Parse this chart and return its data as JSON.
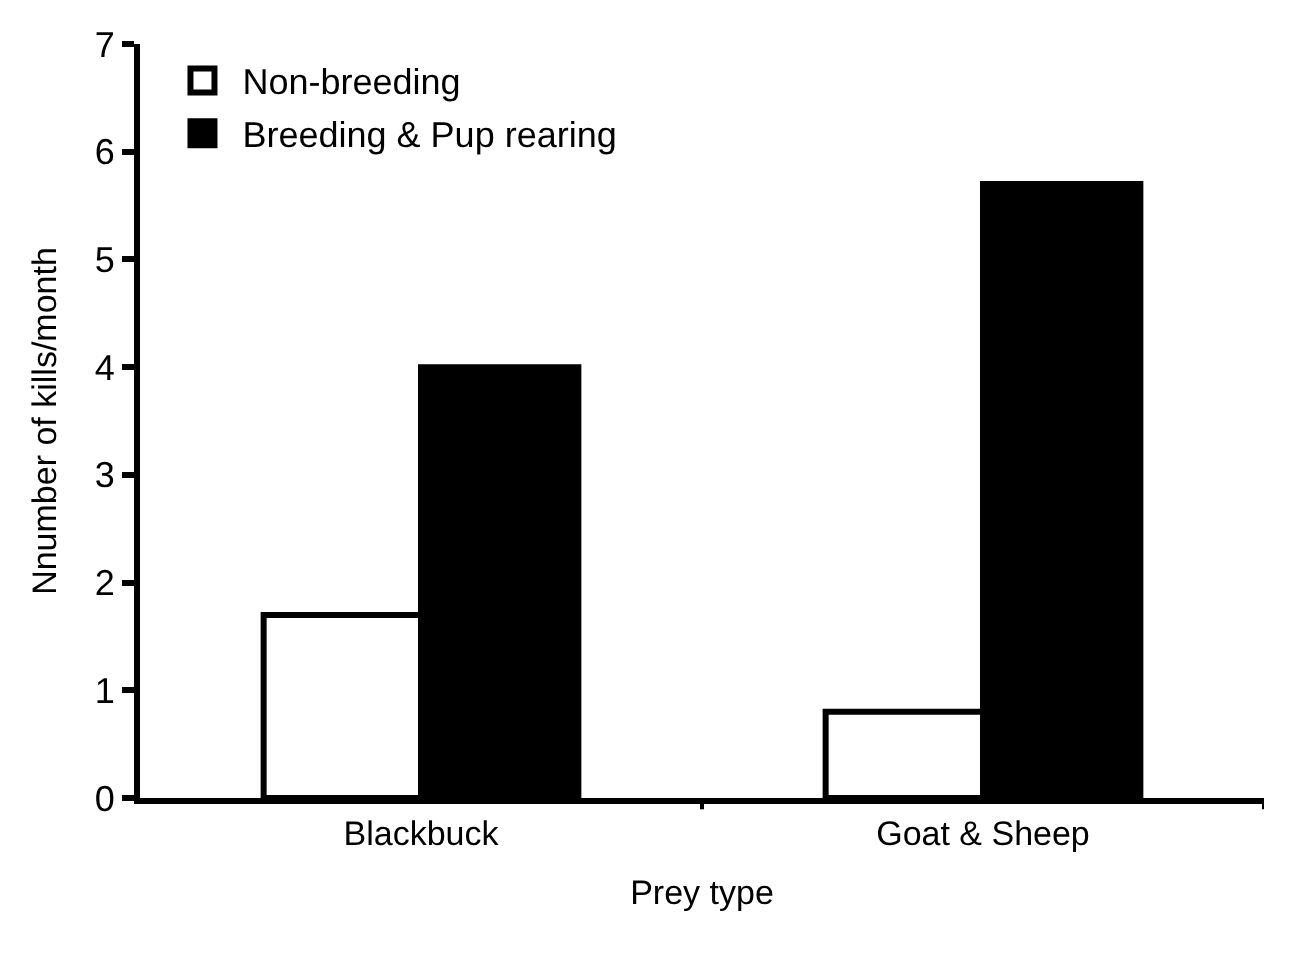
{
  "chart_data": {
    "type": "bar",
    "xlabel": "Prey type",
    "ylabel": "Nnumber of kills/month",
    "categories": [
      "Blackbuck",
      "Goat & Sheep"
    ],
    "series": [
      {
        "name": "Non-breeding",
        "color": "#ffffff",
        "values": [
          1.7,
          0.8
        ]
      },
      {
        "name": "Breeding & Pup rearing",
        "color": "#000000",
        "values": [
          4.0,
          5.7
        ]
      }
    ],
    "ylim": [
      0,
      7
    ],
    "yticks": [
      0,
      1,
      2,
      3,
      4,
      5,
      6,
      7
    ],
    "legend": "top left"
  }
}
